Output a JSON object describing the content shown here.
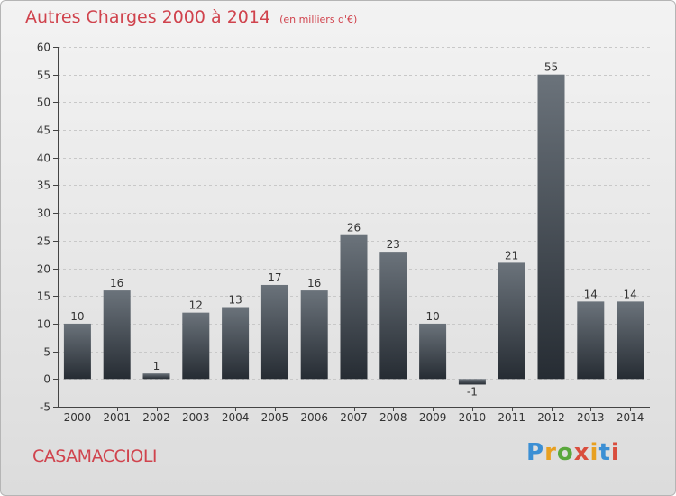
{
  "title": "Autres Charges 2000 à 2014",
  "unit": "(en milliers d'€)",
  "commune": "CASAMACCIOLI",
  "brand": {
    "text": "Proxiti",
    "letter_colors": [
      "#3b8fd4",
      "#e8a020",
      "#5aa83c",
      "#d94d3d",
      "#e8a020",
      "#3b8fd4",
      "#d94d3d"
    ]
  },
  "colors": {
    "bar_top": "#6b737b",
    "bar_bottom": "#262c33",
    "grid": "#c8c8c8",
    "axis": "#444444",
    "text": "#333333",
    "accent": "#d0434d"
  },
  "chart_data": {
    "type": "bar",
    "title": "Autres Charges 2000 à 2014",
    "subtitle": "(en milliers d'€)",
    "xlabel": "",
    "ylabel": "",
    "categories": [
      "2000",
      "2001",
      "2002",
      "2003",
      "2004",
      "2005",
      "2006",
      "2007",
      "2008",
      "2009",
      "2010",
      "2011",
      "2012",
      "2013",
      "2014"
    ],
    "values": [
      10,
      16,
      1,
      12,
      13,
      17,
      16,
      26,
      23,
      10,
      -1,
      21,
      55,
      14,
      14
    ],
    "data_labels": [
      "10",
      "16",
      "1",
      "12",
      "13",
      "17",
      "16",
      "26",
      "23",
      "10",
      "-1",
      "21",
      "55",
      "14",
      "14"
    ],
    "ylim": [
      -5,
      60
    ],
    "yticks": [
      -5,
      0,
      5,
      10,
      15,
      20,
      25,
      30,
      35,
      40,
      45,
      50,
      55,
      60
    ],
    "grid": true,
    "legend": "none"
  }
}
